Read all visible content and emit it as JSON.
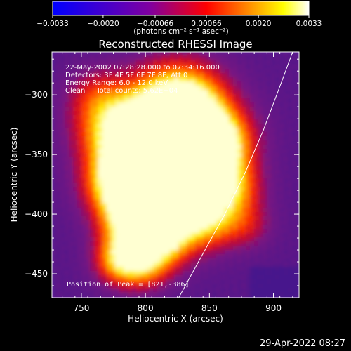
{
  "chart_data": {
    "type": "heatmap",
    "title": "Reconstructed RHESSI Image",
    "xlabel": "Heliocentric X (arcsec)",
    "ylabel": "Heliocentric Y (arcsec)",
    "xlim": [
      727,
      920
    ],
    "ylim": [
      -470,
      -264
    ],
    "xticks": [
      750,
      800,
      850,
      900
    ],
    "yticks": [
      -300,
      -350,
      -400,
      -450
    ],
    "xtick_labels": [
      "750",
      "800",
      "850",
      "900"
    ],
    "ytick_labels": [
      "−300",
      "−350",
      "−400",
      "−450"
    ],
    "colorbar": {
      "range": [
        -0.0033,
        0.0033
      ],
      "ticks": [
        -0.0033,
        -0.002,
        -0.00066,
        0.00066,
        0.002,
        0.0033
      ],
      "tick_labels": [
        "−0.0033",
        "−0.0020",
        "−0.00066",
        "0.00066",
        "0.0020",
        "0.0033"
      ],
      "unit_label": "(photons cm⁻² s⁻¹ asec⁻²)",
      "colors": [
        "#0000ff",
        "#8000a0",
        "#ff0000",
        "#ff8000",
        "#ffff00",
        "#ffffff"
      ]
    },
    "info_lines": [
      "22-May-2002 07:28:28.000 to 07:34:16.000",
      "Detectors: 3F 4F 5F 6F 7F 8F, Att 0",
      "Energy Range: 6.0 - 12.0 keV",
      "Clean     Total counts: 5.62E+04"
    ],
    "peak_label": "Position of Peak = [821,-386]",
    "peak": [
      821,
      -386
    ],
    "limb_curve": [
      [
        826,
        -470
      ],
      [
        845,
        -433
      ],
      [
        862,
        -400
      ],
      [
        878,
        -365
      ],
      [
        892,
        -330
      ],
      [
        906,
        -290
      ],
      [
        915,
        -264
      ]
    ]
  },
  "timestamp": "29-Apr-2022 08:27"
}
